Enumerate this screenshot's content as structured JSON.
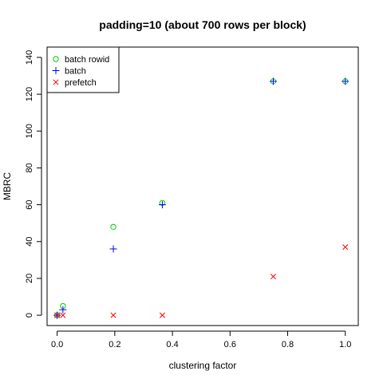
{
  "chart_data": {
    "type": "scatter",
    "title": "padding=10 (about 700 rows per block)",
    "xlabel": "clustering factor",
    "ylabel": "MBRC",
    "xlim": [
      -0.035,
      1.045
    ],
    "ylim": [
      -5.6,
      145.6
    ],
    "x_ticks": [
      0.0,
      0.2,
      0.4,
      0.6,
      0.8,
      1.0
    ],
    "x_tick_labels": [
      "0.0",
      "0.2",
      "0.4",
      "0.6",
      "0.8",
      "1.0"
    ],
    "y_ticks": [
      0,
      20,
      40,
      60,
      80,
      100,
      120,
      140
    ],
    "y_tick_labels": [
      "0",
      "20",
      "40",
      "60",
      "80",
      "100",
      "120",
      "140"
    ],
    "grid": false,
    "legend_position": "top-left",
    "series": [
      {
        "name": "batch rowid",
        "marker": "circle",
        "color": "#00cc00",
        "points": [
          [
            0.0,
            0
          ],
          [
            0.02,
            5
          ],
          [
            0.195,
            48
          ],
          [
            0.365,
            61
          ],
          [
            0.75,
            127
          ],
          [
            1.0,
            127
          ]
        ]
      },
      {
        "name": "batch",
        "marker": "plus",
        "color": "#0000ff",
        "points": [
          [
            0.0,
            0
          ],
          [
            0.02,
            3
          ],
          [
            0.195,
            36
          ],
          [
            0.365,
            60
          ],
          [
            0.75,
            127
          ],
          [
            1.0,
            127
          ]
        ]
      },
      {
        "name": "prefetch",
        "marker": "cross",
        "color": "#ff0000",
        "points": [
          [
            0.0,
            0
          ],
          [
            0.02,
            0
          ],
          [
            0.195,
            0
          ],
          [
            0.365,
            0
          ],
          [
            0.75,
            21
          ],
          [
            1.0,
            37
          ]
        ]
      }
    ]
  }
}
